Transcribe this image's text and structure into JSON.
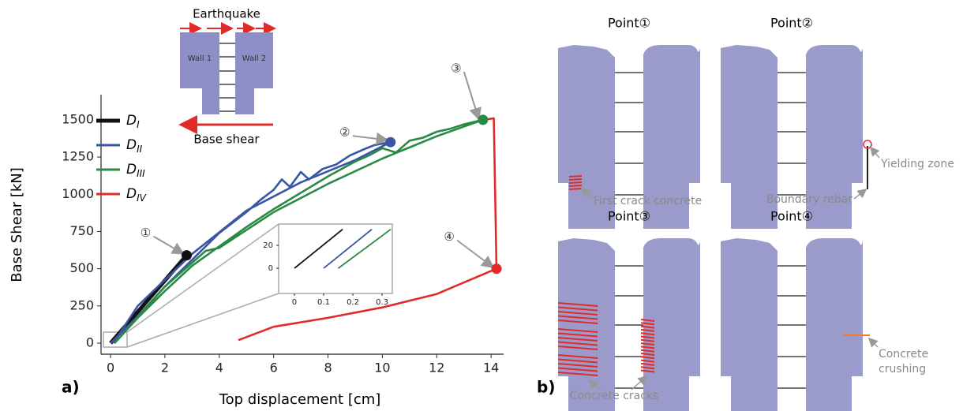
{
  "chart_data": [
    {
      "type": "line",
      "xlabel": "Top displacement [cm]",
      "ylabel": "Base Shear [kN]",
      "xlim": [
        -0.35,
        14.46
      ],
      "ylim": [
        -53,
        1669
      ],
      "xticks": [
        0,
        2,
        4,
        6,
        8,
        10,
        12,
        14
      ],
      "yticks": [
        0,
        250,
        500,
        750,
        1000,
        1250,
        1500
      ],
      "series": [
        {
          "name": "DI",
          "color": "#111111",
          "x": [
            0,
            2.8
          ],
          "values": [
            0,
            590
          ]
        },
        {
          "name": "DII",
          "color": "#3a55a4",
          "x": [
            0,
            1,
            2,
            3,
            4,
            5,
            5.5,
            6,
            6.3,
            6.6,
            7,
            7.3,
            7.8,
            8.3,
            8.8,
            9.3,
            9.7,
            10.3,
            9,
            7,
            5,
            3,
            1,
            0.1
          ],
          "values": [
            0,
            180,
            380,
            560,
            740,
            880,
            960,
            1030,
            1100,
            1050,
            1150,
            1100,
            1170,
            1200,
            1260,
            1300,
            1330,
            1350,
            1230,
            1080,
            890,
            600,
            250,
            0
          ]
        },
        {
          "name": "DIII",
          "color": "#2a8a45",
          "x": [
            0.15,
            1,
            2,
            3,
            4,
            5,
            6,
            7,
            8,
            9,
            9.5,
            10,
            10.5,
            11,
            11.5,
            12,
            12.5,
            13,
            13.7,
            12,
            10,
            8,
            6,
            4,
            3.5,
            2,
            0.15
          ],
          "values": [
            0,
            170,
            350,
            520,
            650,
            780,
            900,
            1010,
            1120,
            1220,
            1260,
            1310,
            1280,
            1360,
            1380,
            1420,
            1440,
            1470,
            1500,
            1390,
            1240,
            1070,
            880,
            640,
            620,
            380,
            0
          ]
        },
        {
          "name": "DIV",
          "color": "#e02b2b",
          "x": [
            13.7,
            14.1,
            14.2,
            12,
            10,
            8,
            6,
            4.7
          ],
          "values": [
            1500,
            1510,
            500,
            330,
            240,
            170,
            110,
            20
          ]
        }
      ],
      "points": [
        {
          "label": "①",
          "x": 2.8,
          "y": 590,
          "color": "#111111"
        },
        {
          "label": "②",
          "x": 10.3,
          "y": 1350,
          "color": "#3a55a4"
        },
        {
          "label": "③",
          "x": 13.7,
          "y": 1500,
          "color": "#2a8a45"
        },
        {
          "label": "④",
          "x": 14.2,
          "y": 500,
          "color": "#e02b2b"
        }
      ]
    },
    {
      "type": "line",
      "xlim": [
        -0.054,
        0.335
      ],
      "ylim": [
        -22,
        38.6
      ],
      "xticks": [
        0,
        0.1,
        0.2,
        0.3
      ],
      "yticks": [
        0,
        20
      ],
      "series": [
        {
          "color": "#111111",
          "x": [
            0,
            0.165
          ],
          "values": [
            0,
            34
          ]
        },
        {
          "color": "#3a55a4",
          "x": [
            0.1,
            0.265
          ],
          "values": [
            0,
            34
          ]
        },
        {
          "color": "#2a8a45",
          "x": [
            0.15,
            0.33
          ],
          "values": [
            0,
            34
          ]
        }
      ]
    }
  ],
  "panel_labels": [
    "a)",
    "b)"
  ],
  "schematic": {
    "title": "Earthquake",
    "wall1": "Wall 1",
    "wall2": "Wall 2",
    "base": "Base shear"
  },
  "panels": [
    {
      "title": "Point①",
      "labels": [
        "First crack concrete"
      ]
    },
    {
      "title": "Point②",
      "labels": [
        "Yielding zone",
        "Boundary rebar"
      ]
    },
    {
      "title": "Point③",
      "labels": [
        "Concrete cracks"
      ]
    },
    {
      "title": "Point④",
      "labels": [
        "Concrete",
        "crushing"
      ]
    }
  ]
}
